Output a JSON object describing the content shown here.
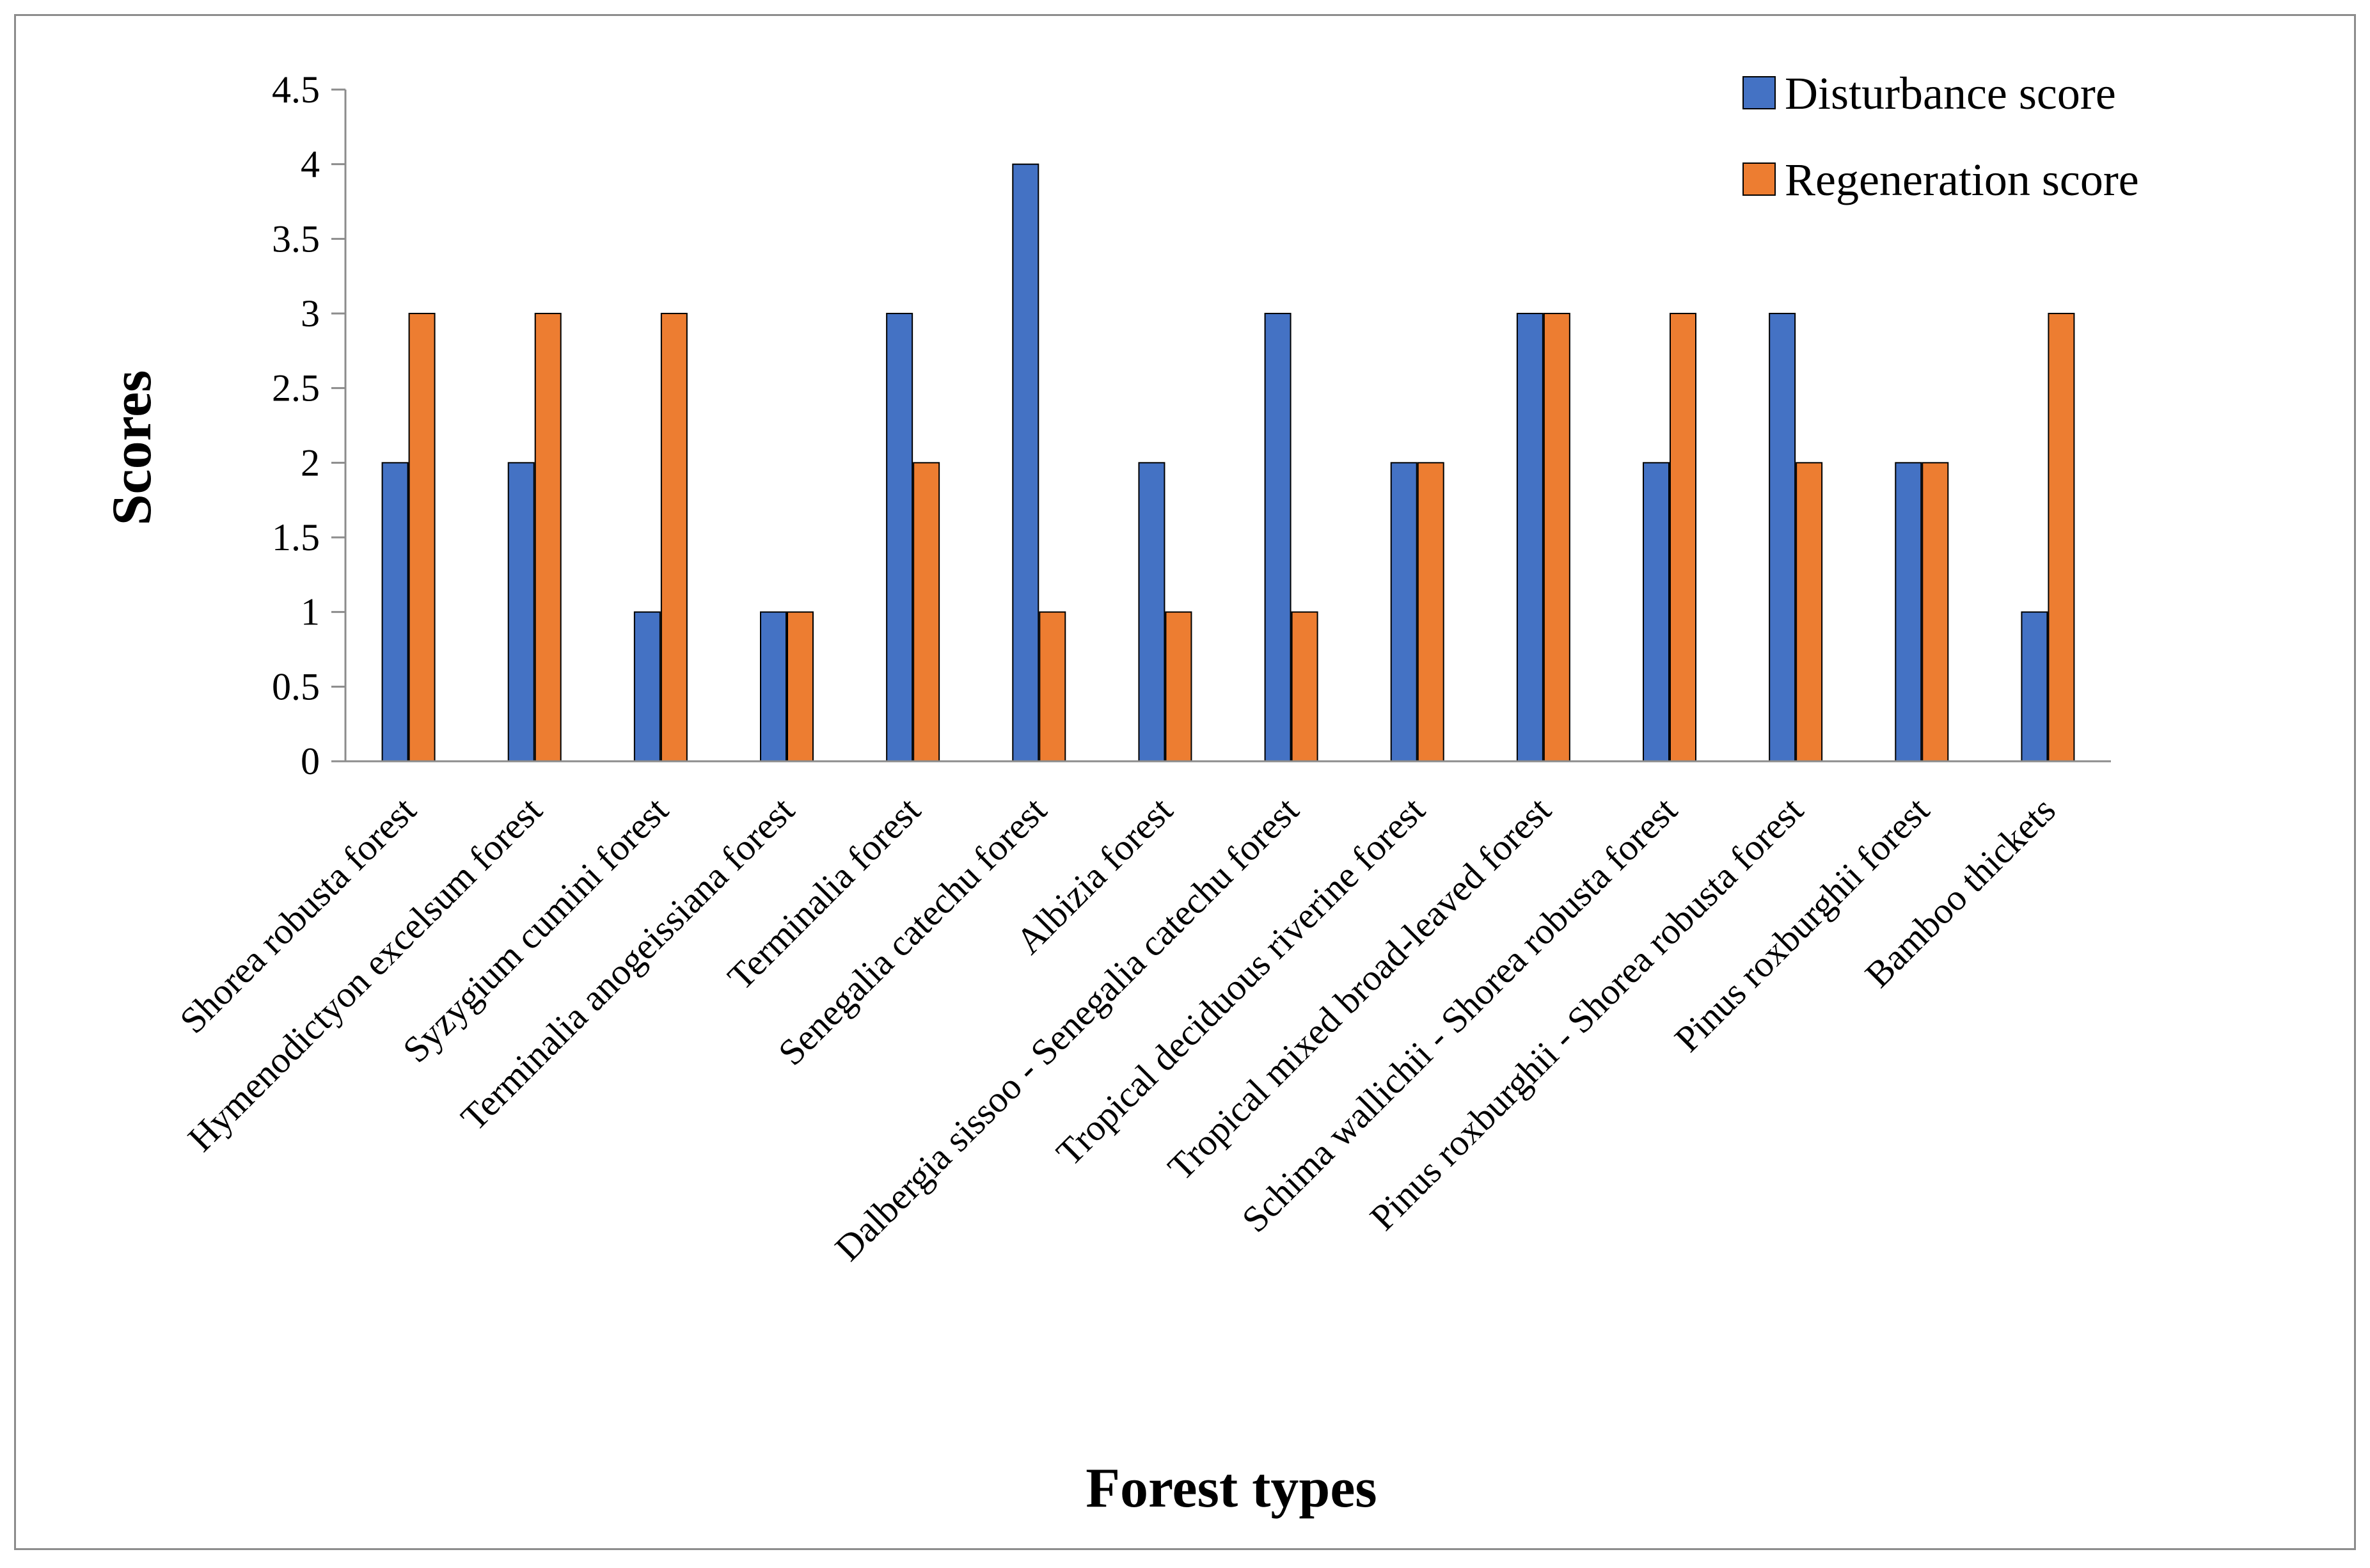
{
  "chart_data": {
    "type": "bar",
    "title": "",
    "xlabel": "Forest types",
    "ylabel": "Scores",
    "ylim": [
      0,
      4.5
    ],
    "yticks": [
      "0",
      "0.5",
      "1",
      "1.5",
      "2",
      "2.5",
      "3",
      "3.5",
      "4",
      "4.5"
    ],
    "grid": false,
    "legend_position": "top-right",
    "categories": [
      "Shorea robusta forest",
      "Hymenodictyon excelsum forest",
      "Syzygium cumini forest",
      "Terminalia anogeissiana forest",
      "Terminalia forest",
      "Senegalia catechu forest",
      "Albizia forest",
      "Dalbergia sissoo - Senegalia catechu forest",
      "Tropical deciduous riverine forest",
      "Tropical mixed broad-leaved forest",
      "Schima wallichii - Shorea robusta forest",
      "Pinus roxburghii - Shorea robusta forest",
      "Pinus roxburghii forest",
      "Bamboo thickets"
    ],
    "series": [
      {
        "name": "Disturbance score",
        "color": "#4472c4",
        "values": [
          2,
          2,
          1,
          1,
          3,
          4,
          2,
          3,
          2,
          3,
          2,
          3,
          2,
          1
        ]
      },
      {
        "name": "Regeneration score",
        "color": "#ed7d31",
        "values": [
          3,
          3,
          3,
          1,
          2,
          1,
          1,
          1,
          2,
          3,
          3,
          2,
          2,
          3
        ]
      }
    ]
  }
}
